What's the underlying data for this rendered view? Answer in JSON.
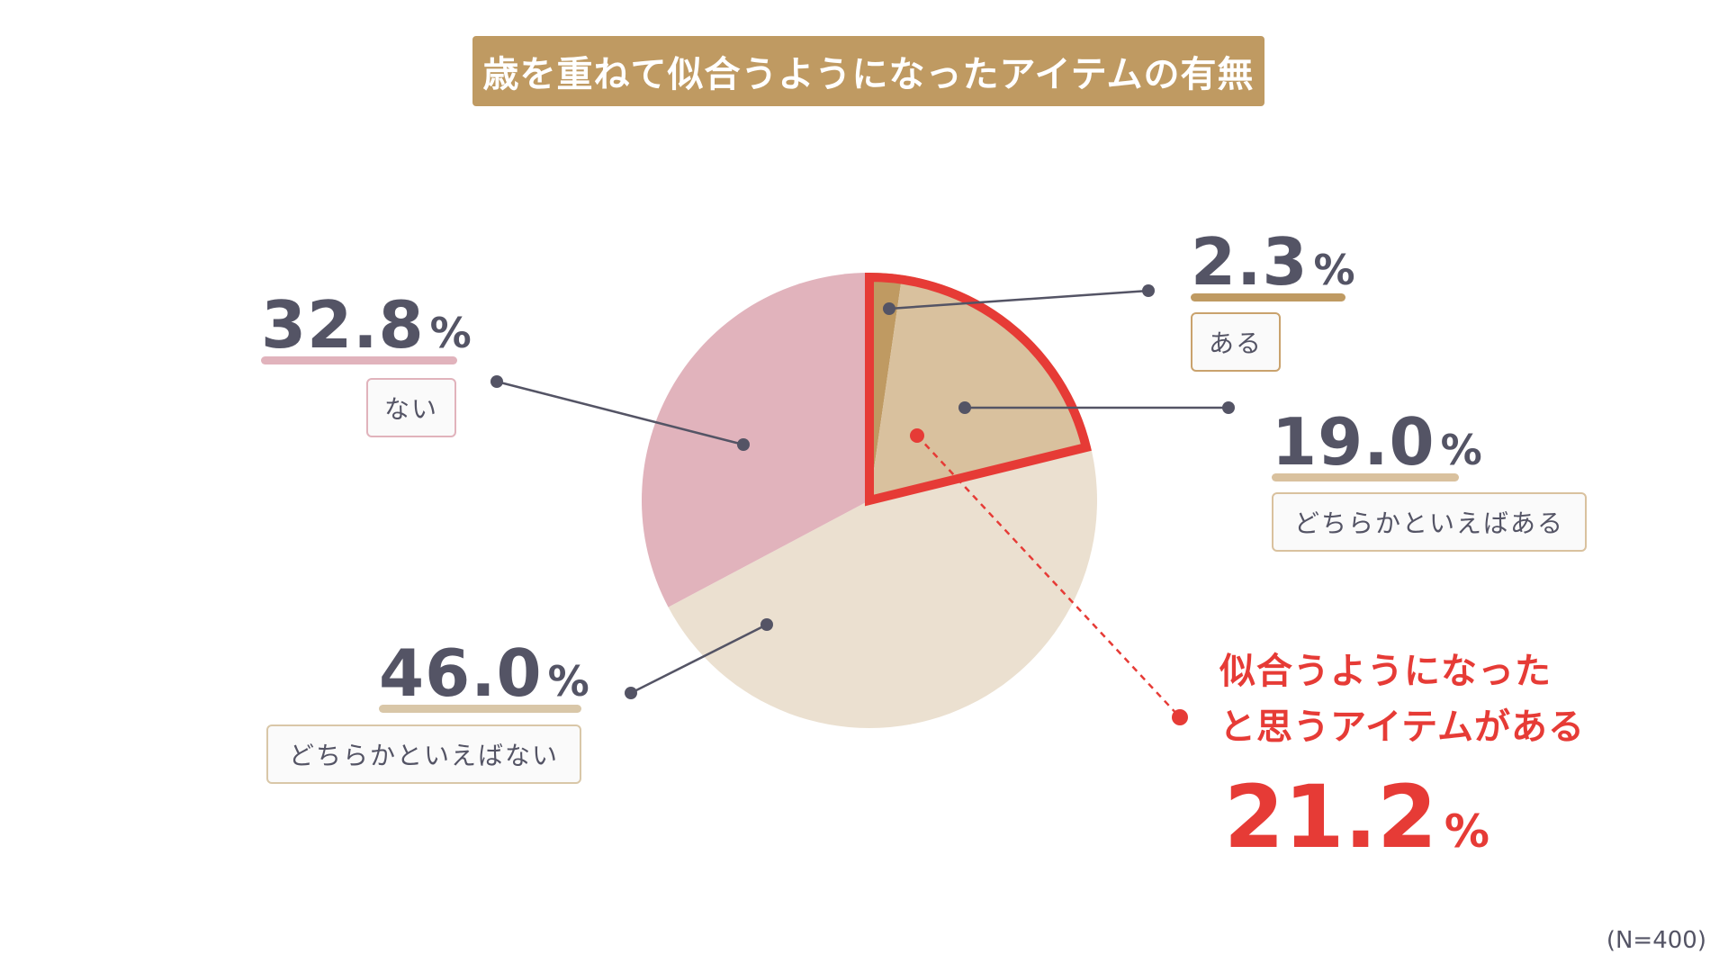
{
  "title": "歳を重ねて似合うようになったアイテムの有無",
  "sample_note": "(N=400)",
  "colors": {
    "title_bg": "#bf9a62",
    "accent_red": "#e63b36",
    "text_dark": "#545465",
    "leader_line": "#545465"
  },
  "chart_data": {
    "type": "pie",
    "title": "歳を重ねて似合うようになったアイテムの有無",
    "unit": "%",
    "slices": [
      {
        "label": "ある",
        "value": 2.3,
        "value_text": "2.3",
        "color": "#bf9a62",
        "border_color": "#c9a26d"
      },
      {
        "label": "どちらかといえばある",
        "value": 19.0,
        "value_text": "19.0",
        "color": "#d9c19e",
        "border_color": "#d9c19e"
      },
      {
        "label": "どちらかといえばない",
        "value": 46.0,
        "value_text": "46.0",
        "color": "#ebe0d0",
        "border_color": "#d9c7a8"
      },
      {
        "label": "ない",
        "value": 32.8,
        "value_text": "32.8",
        "color": "#e1b3bc",
        "border_color": "#e1b3bc"
      }
    ],
    "highlight": {
      "label_line1": "似合うようになった",
      "label_line2": "と思うアイテムがある",
      "value": 21.2,
      "value_text": "21.2",
      "includes": [
        "ある",
        "どちらかといえばある"
      ]
    },
    "note": "(N=400)"
  }
}
